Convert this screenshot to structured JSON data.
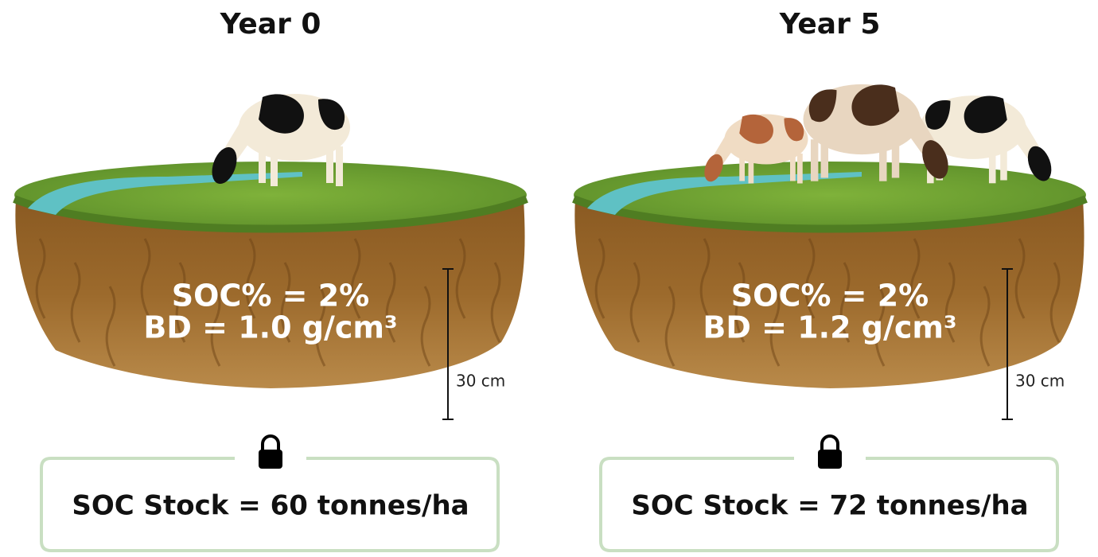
{
  "panels": [
    {
      "title": "Year 0",
      "soc": "SOC% = 2%",
      "bd": "BD = 1.0 g/cm³",
      "depth": "30 cm",
      "stock": "SOC Stock = 60 tonnes/ha"
    },
    {
      "title": "Year 5",
      "soc": "SOC% = 2%",
      "bd": "BD = 1.2 g/cm³",
      "depth": "30 cm",
      "stock": "SOC Stock = 72 tonnes/ha"
    }
  ]
}
